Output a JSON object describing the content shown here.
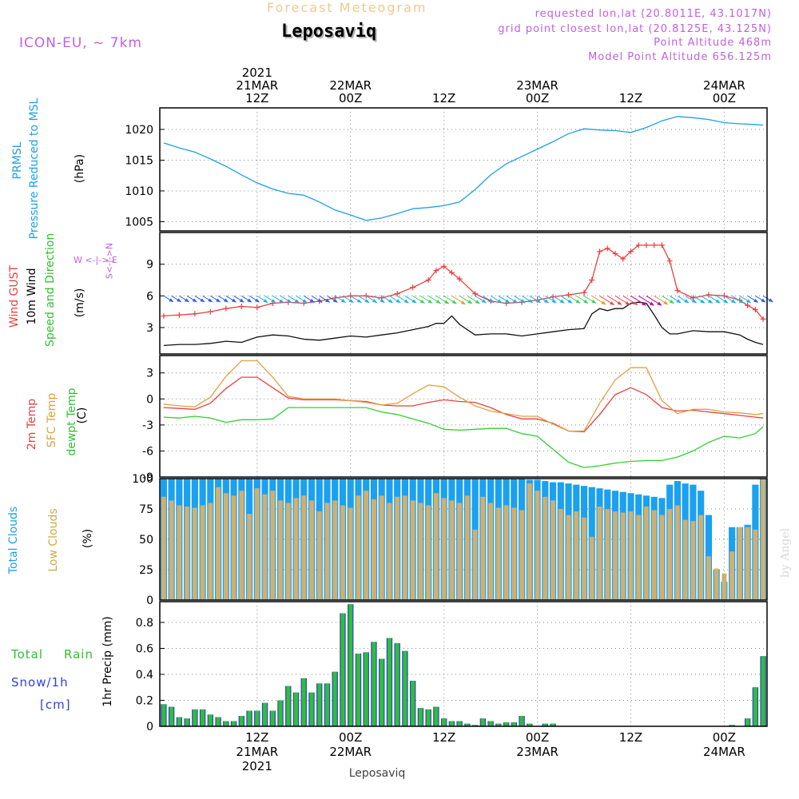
{
  "header": {
    "title": "Forecast Meteogram",
    "location": "Leposaviq",
    "model": "ICON-EU, ~ 7km",
    "requested": "requested lon,lat (20.8011E, 43.1017N)",
    "grid_point": "grid point closest lon,lat (20.8125E, 43.125N)",
    "point_altitude": "Point Altitude 468m",
    "model_altitude": "Model Point Altitude 656.125m"
  },
  "time_axis": {
    "top_ticks": [
      {
        "h": 12,
        "lines": [
          "2021",
          "21MAR",
          "12Z"
        ]
      },
      {
        "h": 24,
        "lines": [
          "22MAR",
          "00Z"
        ]
      },
      {
        "h": 36,
        "lines": [
          "12Z"
        ]
      },
      {
        "h": 48,
        "lines": [
          "23MAR",
          "00Z"
        ]
      },
      {
        "h": 60,
        "lines": [
          "12Z"
        ]
      },
      {
        "h": 72,
        "lines": [
          "24MAR",
          "00Z"
        ]
      }
    ],
    "bottom_ticks": [
      {
        "h": 12,
        "lines": [
          "12Z",
          "21MAR",
          "2021"
        ]
      },
      {
        "h": 24,
        "lines": [
          "00Z",
          "22MAR"
        ]
      },
      {
        "h": 36,
        "lines": [
          "12Z"
        ]
      },
      {
        "h": 48,
        "lines": [
          "00Z",
          "23MAR"
        ]
      },
      {
        "h": 60,
        "lines": [
          "12Z"
        ]
      },
      {
        "h": 72,
        "lines": [
          "00Z",
          "24MAR"
        ]
      }
    ],
    "bottom_caption": "Leposaviq"
  },
  "panel_labels": {
    "pressure": {
      "a": "PRMSL",
      "b": "Pressure Reduced to MSL",
      "unit": "(hPa)"
    },
    "wind": {
      "a": "Wind GUST",
      "b": "10m Wind",
      "c": "Speed and Direction",
      "unit": "(m/s)",
      "compass_h": "W <-|-> E",
      "compass_v": "S<-|->N"
    },
    "temp": {
      "a": "2m Temp",
      "b": "SFC Temp",
      "c": "dewpt Temp",
      "unit": "(C)"
    },
    "clouds": {
      "a": "Total Clouds",
      "b": "Low Clouds",
      "unit": "(%)"
    },
    "precip": {
      "a": "Total",
      "b": "Rain",
      "c": "Snow/1h",
      "d": "[cm]",
      "unit": "1hr Precip (mm)"
    }
  },
  "credit": "by Angel",
  "colors": {
    "pressure": "#1ca0e8",
    "gust": "#e84040",
    "wind": "#101010",
    "temp2m": "#e84040",
    "sfc": "#e0a040",
    "dewpt": "#30d030",
    "total_clouds": "#1ca0f0",
    "low_clouds": "#d0b070",
    "rain": "#30c030",
    "snow": "#3040e0",
    "label_purple": "#c060e0"
  },
  "chart_data": [
    {
      "type": "line",
      "title": "PRMSL Pressure Reduced to MSL",
      "ylabel": "(hPa)",
      "x_range_hours": [
        -0.5,
        77.5
      ],
      "ylim": [
        1003.5,
        1023.5
      ],
      "yticks": [
        1005,
        1010,
        1015,
        1020
      ],
      "series": [
        {
          "name": "PRMSL",
          "x": [
            0,
            2,
            4,
            6,
            8,
            10,
            12,
            14,
            16,
            18,
            20,
            22,
            24,
            26,
            28,
            30,
            32,
            34,
            36,
            38,
            40,
            42,
            44,
            46,
            48,
            50,
            52,
            54,
            56,
            58,
            60,
            62,
            64,
            66,
            68,
            70,
            72,
            74,
            76,
            77
          ],
          "values": [
            1017.8,
            1017,
            1016.3,
            1015.2,
            1014,
            1012.6,
            1011.3,
            1010.3,
            1009.6,
            1009.3,
            1008.2,
            1006.9,
            1006.1,
            1005.2,
            1005.6,
            1006.3,
            1007.1,
            1007.3,
            1007.6,
            1008.2,
            1010.2,
            1012.6,
            1014.4,
            1015.6,
            1016.8,
            1018,
            1019.3,
            1020.1,
            1019.9,
            1019.8,
            1019.5,
            1020.3,
            1021.4,
            1022.1,
            1021.9,
            1021.6,
            1021.1,
            1020.9,
            1020.8,
            1020.7
          ]
        }
      ]
    },
    {
      "type": "line",
      "title": "Wind GUST / 10m Wind Speed and Direction",
      "ylabel": "(m/s)",
      "x_range_hours": [
        -0.5,
        77.5
      ],
      "ylim": [
        0.5,
        12
      ],
      "yticks": [
        3,
        6,
        9
      ],
      "series": [
        {
          "name": "Wind GUST",
          "x": [
            0,
            2,
            4,
            6,
            8,
            10,
            12,
            14,
            16,
            18,
            20,
            22,
            24,
            26,
            28,
            30,
            32,
            34,
            35,
            36,
            37,
            38,
            40,
            42,
            44,
            46,
            48,
            50,
            52,
            54,
            55,
            56,
            57,
            58,
            59,
            60,
            61,
            62,
            63,
            64,
            65,
            66,
            68,
            70,
            72,
            74,
            75,
            76,
            77
          ],
          "values": [
            4.1,
            4.2,
            4.3,
            4.5,
            4.8,
            5.0,
            4.9,
            5.3,
            5.4,
            5.3,
            5.5,
            5.8,
            6.0,
            6.0,
            5.8,
            6.2,
            6.8,
            7.5,
            8.4,
            8.8,
            8.2,
            7.6,
            6.2,
            5.5,
            5.3,
            5.4,
            5.6,
            5.9,
            6.1,
            6.3,
            7.5,
            10.2,
            10.5,
            10.0,
            9.5,
            10.2,
            10.8,
            10.8,
            10.8,
            10.8,
            9.3,
            6.5,
            5.8,
            6.1,
            6.0,
            5.6,
            5.1,
            4.7,
            3.8
          ]
        },
        {
          "name": "10m Wind",
          "x": [
            0,
            2,
            4,
            6,
            8,
            10,
            12,
            14,
            16,
            18,
            20,
            22,
            24,
            26,
            28,
            30,
            32,
            34,
            35,
            36,
            37,
            38,
            40,
            42,
            44,
            46,
            48,
            50,
            52,
            54,
            55,
            56,
            57,
            58,
            59,
            60,
            61,
            62,
            63,
            64,
            65,
            66,
            68,
            70,
            72,
            74,
            75,
            76,
            77
          ],
          "values": [
            1.3,
            1.4,
            1.4,
            1.5,
            1.7,
            1.6,
            2.1,
            2.3,
            2.2,
            1.9,
            1.8,
            2.0,
            2.2,
            2.1,
            2.3,
            2.5,
            2.8,
            3.1,
            3.4,
            3.4,
            4.1,
            3.3,
            2.3,
            2.4,
            2.4,
            2.2,
            2.4,
            2.6,
            2.8,
            2.9,
            4.3,
            4.8,
            4.6,
            4.8,
            4.8,
            5.3,
            5.4,
            5.3,
            4.2,
            3.0,
            2.4,
            2.4,
            2.7,
            2.6,
            2.6,
            2.3,
            1.9,
            1.6,
            1.4
          ]
        }
      ],
      "wind_direction_barbs": "arrows toward SE, colored by speed"
    },
    {
      "type": "line",
      "title": "2m Temp / SFC Temp / dewpt Temp",
      "ylabel": "(C)",
      "x_range_hours": [
        -0.5,
        77.5
      ],
      "ylim": [
        -9,
        5
      ],
      "yticks": [
        -9,
        -6,
        -3,
        0,
        3
      ],
      "series": [
        {
          "name": "2m Temp",
          "x": [
            0,
            2,
            4,
            6,
            8,
            10,
            12,
            14,
            16,
            18,
            20,
            22,
            24,
            26,
            28,
            30,
            32,
            34,
            36,
            38,
            40,
            42,
            44,
            46,
            48,
            50,
            52,
            54,
            56,
            58,
            60,
            62,
            64,
            66,
            68,
            70,
            72,
            74,
            76,
            77
          ],
          "values": [
            -1.0,
            -1.1,
            -1.2,
            -0.5,
            1.2,
            2.5,
            2.5,
            1.3,
            0.1,
            -0.1,
            -0.1,
            -0.1,
            -0.2,
            -0.3,
            -0.7,
            -0.8,
            -0.8,
            -0.4,
            -0.1,
            -0.3,
            -0.4,
            -1.0,
            -1.8,
            -2.3,
            -2.3,
            -2.8,
            -3.7,
            -3.8,
            -1.8,
            0.5,
            1.3,
            0.5,
            -1.0,
            -1.4,
            -1.3,
            -1.5,
            -1.7,
            -1.9,
            -2.1,
            -2.2
          ]
        },
        {
          "name": "SFC Temp",
          "x": [
            0,
            2,
            4,
            6,
            8,
            10,
            12,
            14,
            16,
            18,
            20,
            22,
            24,
            26,
            28,
            30,
            32,
            34,
            36,
            38,
            40,
            42,
            44,
            46,
            48,
            50,
            52,
            54,
            56,
            58,
            60,
            62,
            64,
            66,
            68,
            70,
            72,
            74,
            76,
            77
          ],
          "values": [
            -0.6,
            -0.8,
            -0.9,
            0.2,
            2.6,
            4.4,
            4.4,
            2.5,
            0.3,
            0.0,
            0.0,
            0.0,
            -0.2,
            -0.4,
            -0.7,
            -0.5,
            0.6,
            1.6,
            1.4,
            0.2,
            -0.8,
            -1.4,
            -1.7,
            -2.0,
            -2.0,
            -2.9,
            -3.7,
            -3.7,
            -0.5,
            2.2,
            3.6,
            3.6,
            -0.2,
            -1.7,
            -1.2,
            -1.2,
            -1.5,
            -1.6,
            -1.8,
            -1.7
          ]
        },
        {
          "name": "dewpt Temp",
          "x": [
            0,
            2,
            4,
            6,
            8,
            10,
            12,
            14,
            16,
            18,
            20,
            22,
            24,
            26,
            28,
            30,
            32,
            34,
            36,
            38,
            40,
            42,
            44,
            46,
            48,
            50,
            52,
            54,
            56,
            58,
            60,
            62,
            64,
            66,
            68,
            70,
            72,
            74,
            76,
            77
          ],
          "values": [
            -2.1,
            -2.2,
            -2.0,
            -2.2,
            -2.7,
            -2.4,
            -2.4,
            -2.3,
            -1.0,
            -1.0,
            -1.0,
            -1.0,
            -1.0,
            -1.0,
            -1.5,
            -1.8,
            -2.3,
            -2.8,
            -3.5,
            -3.6,
            -3.5,
            -3.4,
            -3.4,
            -4.0,
            -4.3,
            -5.8,
            -7.3,
            -7.9,
            -7.7,
            -7.4,
            -7.2,
            -7.1,
            -7.1,
            -6.7,
            -6.0,
            -5.0,
            -4.3,
            -4.5,
            -4.0,
            -3.2
          ]
        }
      ]
    },
    {
      "type": "bar",
      "title": "Total Clouds / Low Clouds",
      "ylabel": "(%)",
      "x_range_hours": [
        -0.5,
        77.5
      ],
      "ylim": [
        0,
        100
      ],
      "yticks": [
        0,
        25,
        50,
        75,
        100
      ],
      "series": [
        {
          "name": "Total Clouds",
          "values": [
            100,
            100,
            100,
            100,
            100,
            100,
            100,
            100,
            100,
            100,
            100,
            100,
            100,
            100,
            100,
            100,
            100,
            100,
            100,
            100,
            100,
            100,
            100,
            100,
            100,
            100,
            100,
            100,
            100,
            100,
            100,
            100,
            100,
            100,
            100,
            100,
            100,
            100,
            100,
            100,
            100,
            100,
            100,
            100,
            100,
            100,
            100,
            99,
            99,
            98,
            97,
            97,
            96,
            95,
            94,
            93,
            92,
            91,
            90,
            89,
            88,
            87,
            86,
            85,
            84,
            95,
            98,
            96,
            95,
            90,
            70,
            25,
            15,
            60,
            60,
            62,
            95,
            100
          ]
        },
        {
          "name": "Low Clouds",
          "values": [
            85,
            82,
            78,
            77,
            76,
            78,
            80,
            93,
            88,
            86,
            90,
            71,
            92,
            87,
            90,
            82,
            80,
            84,
            86,
            82,
            73,
            80,
            82,
            78,
            76,
            86,
            90,
            83,
            86,
            80,
            85,
            86,
            82,
            80,
            78,
            88,
            84,
            82,
            80,
            86,
            58,
            85,
            80,
            76,
            78,
            76,
            74,
            96,
            90,
            85,
            82,
            75,
            70,
            73,
            68,
            52,
            77,
            75,
            73,
            72,
            73,
            70,
            77,
            74,
            70,
            75,
            78,
            66,
            65,
            70,
            36,
            26,
            22,
            40,
            60,
            60,
            58,
            100
          ]
        }
      ]
    },
    {
      "type": "bar",
      "title": "Total Rain / Snow 1hr Precip",
      "ylabel": "1hr Precip (mm)",
      "x_range_hours": [
        -0.5,
        77.5
      ],
      "ylim": [
        0,
        0.96
      ],
      "yticks": [
        0,
        0.2,
        0.4,
        0.6,
        0.8
      ],
      "series": [
        {
          "name": "Total Rain",
          "values": [
            0.17,
            0.15,
            0.07,
            0.06,
            0.13,
            0.13,
            0.09,
            0.07,
            0.04,
            0.04,
            0.08,
            0.12,
            0.12,
            0.18,
            0.12,
            0.2,
            0.31,
            0.26,
            0.37,
            0.26,
            0.33,
            0.33,
            0.42,
            0.87,
            0.94,
            0.56,
            0.57,
            0.65,
            0.52,
            0.68,
            0.64,
            0.58,
            0.35,
            0.14,
            0.13,
            0.15,
            0.06,
            0.04,
            0.04,
            0.02,
            0.01,
            0.06,
            0.04,
            0.02,
            0.03,
            0.03,
            0.08,
            0.02,
            0.0,
            0.02,
            0.02,
            0.0,
            0.0,
            0.0,
            0.0,
            0.0,
            0.0,
            0.0,
            0.0,
            0.0,
            0.0,
            0.0,
            0.0,
            0.0,
            0.0,
            0.0,
            0.0,
            0.0,
            0.0,
            0.0,
            0.0,
            0.0,
            0.0,
            0.01,
            0.0,
            0.06,
            0.3,
            0.54
          ]
        }
      ]
    }
  ]
}
